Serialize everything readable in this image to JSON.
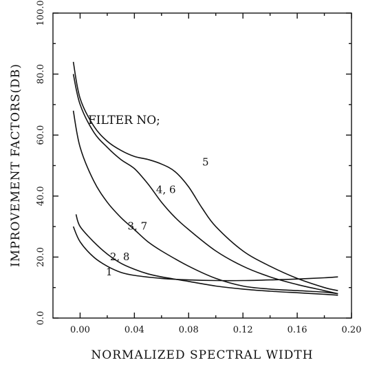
{
  "chart_data": {
    "type": "line",
    "title": "",
    "xlabel": "NORMALIZED SPECTRAL WIDTH",
    "ylabel": "IMPROVEMENT FACTORS(DB)",
    "xlim": [
      -0.02,
      0.2
    ],
    "ylim": [
      0.0,
      100.0
    ],
    "x_ticks": [
      "0.00",
      "0.04",
      "0.08",
      "0.12",
      "0.16",
      "0.20"
    ],
    "y_ticks": [
      "0.0",
      "20.0",
      "40.0",
      "60.0",
      "80.0",
      "100.0"
    ],
    "grid": false,
    "legend_title": "FILTER NO;",
    "series": [
      {
        "name": "5",
        "x": [
          -0.005,
          0.0,
          0.01,
          0.02,
          0.03,
          0.04,
          0.05,
          0.06,
          0.07,
          0.08,
          0.09,
          0.1,
          0.12,
          0.14,
          0.16,
          0.18,
          0.19
        ],
        "y": [
          84,
          72,
          63,
          58,
          55,
          53,
          52,
          50.5,
          48,
          43,
          36,
          30,
          22,
          17,
          13,
          10,
          9
        ]
      },
      {
        "name": "4, 6",
        "x": [
          -0.005,
          0.0,
          0.01,
          0.02,
          0.03,
          0.04,
          0.05,
          0.06,
          0.07,
          0.08,
          0.1,
          0.12,
          0.14,
          0.16,
          0.18,
          0.19
        ],
        "y": [
          80,
          70,
          61,
          56,
          52,
          49,
          44,
          38,
          33,
          29,
          22,
          17,
          13.5,
          11,
          9,
          8
        ]
      },
      {
        "name": "3, 7",
        "x": [
          -0.005,
          0.0,
          0.01,
          0.02,
          0.03,
          0.04,
          0.05,
          0.06,
          0.08,
          0.1,
          0.12,
          0.14,
          0.16,
          0.18,
          0.19
        ],
        "y": [
          68,
          56,
          45,
          38,
          33,
          29,
          25,
          22,
          17,
          13,
          10.5,
          9.5,
          9,
          8.5,
          8
        ]
      },
      {
        "name": "2, 8",
        "x": [
          -0.003,
          0.0,
          0.01,
          0.02,
          0.03,
          0.04,
          0.05,
          0.06,
          0.08,
          0.1,
          0.12,
          0.14,
          0.16,
          0.18,
          0.19
        ],
        "y": [
          34,
          30,
          25,
          21,
          18,
          16,
          14.5,
          13.5,
          12,
          10.5,
          9.5,
          8.8,
          8.3,
          7.8,
          7.5
        ]
      },
      {
        "name": "1",
        "x": [
          -0.005,
          0.0,
          0.01,
          0.02,
          0.03,
          0.04,
          0.06,
          0.08,
          0.1,
          0.12,
          0.14,
          0.16,
          0.18,
          0.19
        ],
        "y": [
          30,
          25,
          20,
          17,
          15,
          14,
          13,
          12.5,
          12.3,
          12.3,
          12.5,
          12.8,
          13.2,
          13.5
        ]
      }
    ],
    "annotations": [
      {
        "text": "5",
        "x": 0.09,
        "y": 50
      },
      {
        "text": "4, 6",
        "x": 0.056,
        "y": 41
      },
      {
        "text": "3, 7",
        "x": 0.035,
        "y": 29
      },
      {
        "text": "2, 8",
        "x": 0.022,
        "y": 19
      },
      {
        "text": "1",
        "x": 0.019,
        "y": 14
      }
    ]
  }
}
